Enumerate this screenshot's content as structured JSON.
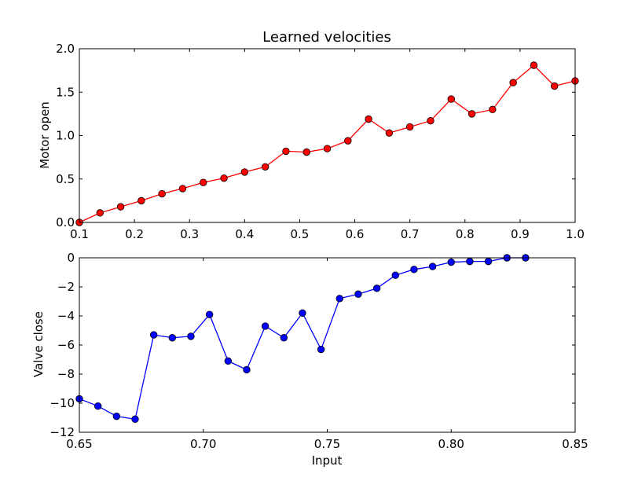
{
  "chart_data": [
    {
      "type": "line",
      "title": "Learned velocities",
      "xlabel": "",
      "ylabel": "Motor open",
      "xlim": [
        0.1,
        1.0
      ],
      "ylim": [
        0.0,
        2.0
      ],
      "xticks": [
        0.1,
        0.2,
        0.3,
        0.4,
        0.5,
        0.6,
        0.7,
        0.8,
        0.9,
        1.0
      ],
      "xtick_labels": [
        "0.1",
        "0.2",
        "0.3",
        "0.4",
        "0.5",
        "0.6",
        "0.7",
        "0.8",
        "0.9",
        "1.0"
      ],
      "yticks": [
        0.0,
        0.5,
        1.0,
        1.5,
        2.0
      ],
      "ytick_labels": [
        "0.0",
        "0.5",
        "1.0",
        "1.5",
        "2.0"
      ],
      "grid": false,
      "color": "#ff0000",
      "marker": "circle",
      "x": [
        0.1,
        0.1375,
        0.175,
        0.2125,
        0.25,
        0.2875,
        0.325,
        0.3625,
        0.4,
        0.4375,
        0.475,
        0.5125,
        0.55,
        0.5875,
        0.625,
        0.6625,
        0.7,
        0.7375,
        0.775,
        0.8125,
        0.85,
        0.8875,
        0.925,
        0.9625,
        1.0
      ],
      "values": [
        0.0,
        0.11,
        0.18,
        0.25,
        0.33,
        0.39,
        0.46,
        0.51,
        0.58,
        0.64,
        0.82,
        0.81,
        0.85,
        0.94,
        1.19,
        1.03,
        1.1,
        1.17,
        1.42,
        1.25,
        1.3,
        1.61,
        1.81,
        1.57,
        1.63
      ]
    },
    {
      "type": "line",
      "title": "",
      "xlabel": "Input",
      "ylabel": "Valve close",
      "xlim": [
        0.65,
        0.85
      ],
      "ylim": [
        -12,
        0
      ],
      "xticks": [
        0.65,
        0.7,
        0.75,
        0.8,
        0.85
      ],
      "xtick_labels": [
        "0.65",
        "0.70",
        "0.75",
        "0.80",
        "0.85"
      ],
      "yticks": [
        -12,
        -10,
        -8,
        -6,
        -4,
        -2,
        0
      ],
      "ytick_labels": [
        "−12",
        "−10",
        "−8",
        "−6",
        "−4",
        "−2",
        "0"
      ],
      "grid": false,
      "color": "#0000ff",
      "marker": "circle",
      "x": [
        0.65,
        0.6575,
        0.665,
        0.6725,
        0.68,
        0.6875,
        0.695,
        0.7025,
        0.71,
        0.7175,
        0.725,
        0.7325,
        0.74,
        0.7475,
        0.755,
        0.7625,
        0.77,
        0.7775,
        0.785,
        0.7925,
        0.8,
        0.8075,
        0.815,
        0.8225,
        0.83
      ],
      "values": [
        -9.7,
        -10.2,
        -10.9,
        -11.1,
        -5.3,
        -5.5,
        -5.4,
        -3.9,
        -7.1,
        -7.7,
        -4.7,
        -5.5,
        -3.8,
        -6.3,
        -2.8,
        -2.5,
        -2.1,
        -1.2,
        -0.8,
        -0.6,
        -0.3,
        -0.25,
        -0.25,
        0.0,
        0.0
      ]
    }
  ]
}
